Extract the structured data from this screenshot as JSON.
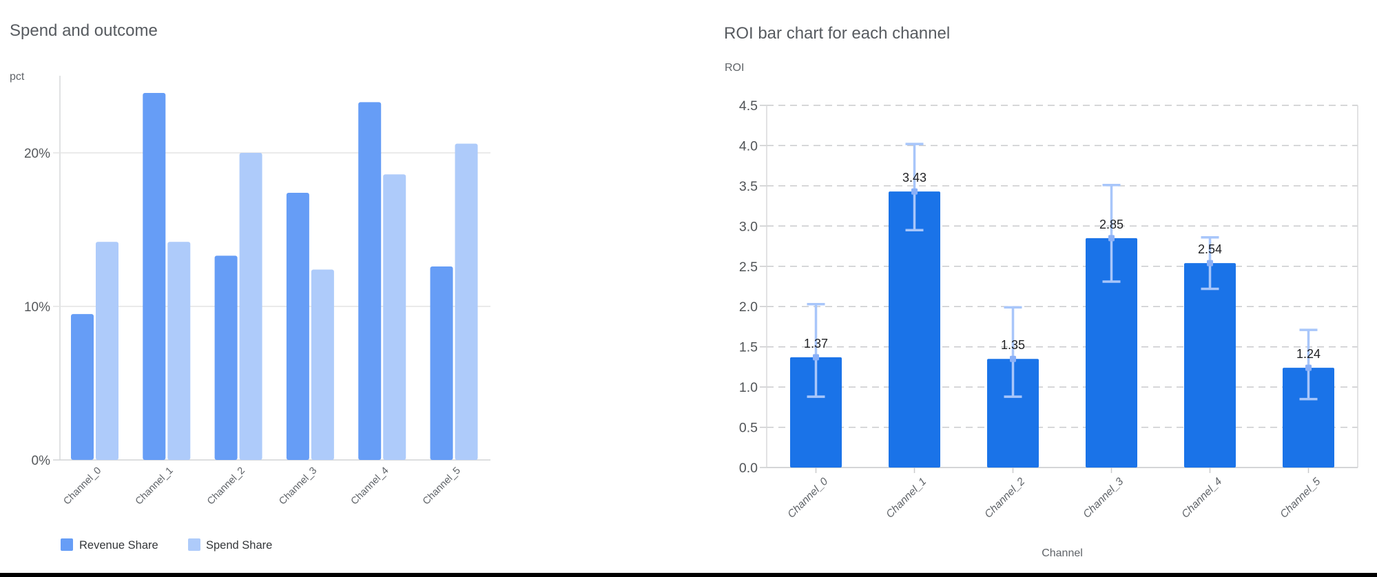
{
  "page": {
    "background": "#ffffff",
    "bottom_rule_color": "#000000"
  },
  "chart_data": [
    {
      "type": "bar",
      "title": "Spend and outcome",
      "ylabel": "pct",
      "xlabel": "",
      "categories": [
        "Channel_0",
        "Channel_1",
        "Channel_2",
        "Channel_3",
        "Channel_4",
        "Channel_5"
      ],
      "series": [
        {
          "name": "Revenue Share",
          "color": "#669df6",
          "values": [
            9.5,
            23.9,
            13.3,
            17.4,
            23.3,
            12.6
          ]
        },
        {
          "name": "Spend Share",
          "color": "#aecbfa",
          "values": [
            14.2,
            14.2,
            20.0,
            12.4,
            18.6,
            20.6
          ]
        }
      ],
      "y_ticks": [
        {
          "value": 0,
          "label": "0%"
        },
        {
          "value": 10,
          "label": "10%"
        },
        {
          "value": 20,
          "label": "20%"
        }
      ],
      "ylim": [
        0,
        25
      ],
      "grid": "horizontal-solid",
      "legend_position": "bottom-left",
      "value_unit": "percent"
    },
    {
      "type": "bar",
      "title": "ROI bar chart for each channel",
      "ylabel": "ROI",
      "xlabel": "Channel",
      "categories": [
        "Channel_0",
        "Channel_1",
        "Channel_2",
        "Channel_3",
        "Channel_4",
        "Channel_5"
      ],
      "values": [
        1.37,
        3.43,
        1.35,
        2.85,
        2.54,
        1.24
      ],
      "value_labels": [
        "1.37",
        "3.43",
        "1.35",
        "2.85",
        "2.54",
        "1.24"
      ],
      "error_bars": [
        {
          "low": 0.88,
          "high": 2.03
        },
        {
          "low": 2.95,
          "high": 4.02
        },
        {
          "low": 0.88,
          "high": 1.99
        },
        {
          "low": 2.31,
          "high": 3.51
        },
        {
          "low": 2.22,
          "high": 2.86
        },
        {
          "low": 0.85,
          "high": 1.71
        }
      ],
      "bar_color": "#1a73e8",
      "error_bar_color": "#a8c6fa",
      "error_marker_color": "#8ab0f7",
      "y_ticks": [
        "0.0",
        "0.5",
        "1.0",
        "1.5",
        "2.0",
        "2.5",
        "3.0",
        "3.5",
        "4.0",
        "4.5"
      ],
      "ylim": [
        0,
        4.5
      ],
      "y_tick_step": 0.5,
      "grid": "horizontal-dashed",
      "legend_position": "none"
    }
  ]
}
